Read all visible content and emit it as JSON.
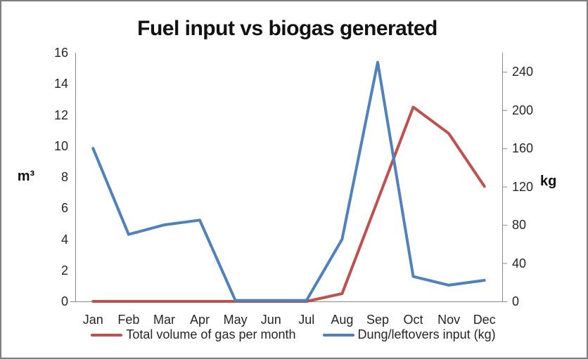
{
  "chart_data": {
    "type": "line",
    "title": "Fuel input vs biogas generated",
    "categories": [
      "Jan",
      "Feb",
      "Mar",
      "Apr",
      "May",
      "Jun",
      "Jul",
      "Aug",
      "Sep",
      "Oct",
      "Nov",
      "Dec"
    ],
    "series": [
      {
        "name": "Total volume of gas per month",
        "axis": "left",
        "color": "#C0504D",
        "values": [
          0,
          0,
          0,
          0,
          0,
          0,
          0,
          0.5,
          6.5,
          12.5,
          10.8,
          7.4
        ]
      },
      {
        "name": "Dung/leftovers input (kg)",
        "axis": "right",
        "color": "#4F81BD",
        "values": [
          160,
          70,
          80,
          85,
          1,
          1,
          1,
          65,
          250,
          26,
          17,
          22
        ]
      }
    ],
    "left_axis": {
      "label": "m³",
      "min": 0,
      "max": 16,
      "tick_labels": [
        "0",
        "2",
        "4",
        "6",
        "8",
        "10",
        "12",
        "14",
        "16"
      ],
      "tick_values": [
        0,
        2,
        4,
        6,
        8,
        10,
        12,
        14,
        16
      ]
    },
    "right_axis": {
      "label": "kg",
      "min": 0,
      "max": 260,
      "tick_labels": [
        "0",
        "40",
        "80",
        "120",
        "160",
        "200",
        "240"
      ],
      "tick_values": [
        0,
        40,
        80,
        120,
        160,
        200,
        240
      ]
    },
    "legend_position": "bottom",
    "gridlines": false,
    "axis_line_color": "#8a8a8a"
  }
}
